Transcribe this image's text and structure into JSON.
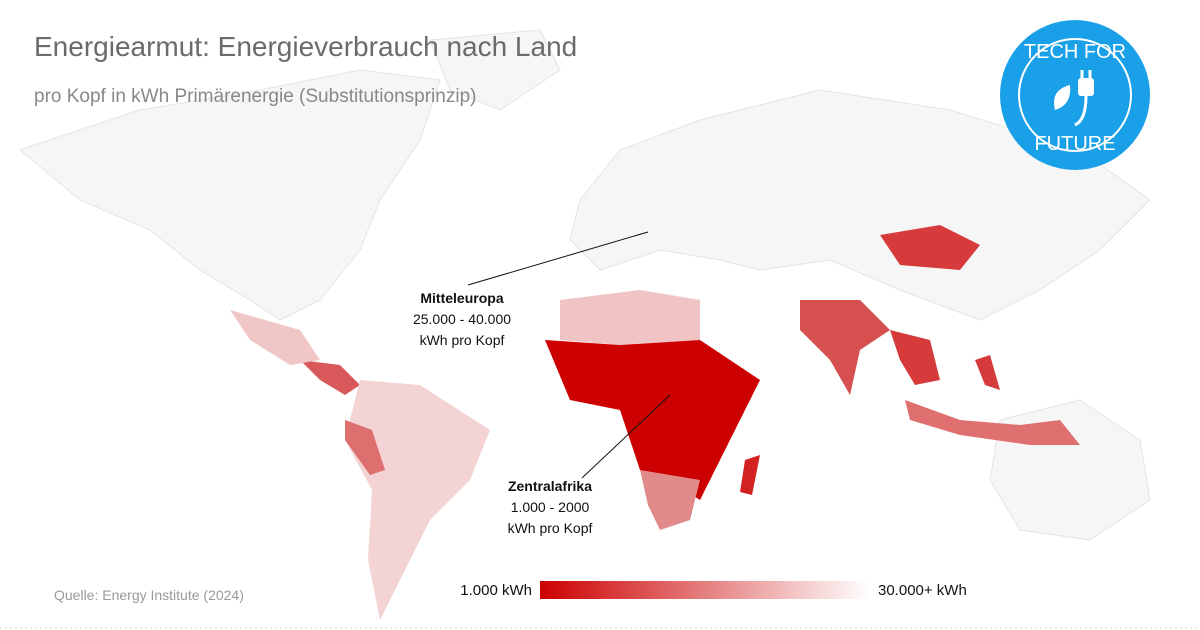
{
  "header": {
    "title": "Energiearmut: Energieverbrauch nach Land",
    "subtitle": "pro Kopf in kWh Primärenergie (Substitutionsprinzip)"
  },
  "annotations": [
    {
      "title": "Mitteleuropa",
      "range": "25.000 - 40.000",
      "unit": "kWh pro Kopf"
    },
    {
      "title": "Zentralafrika",
      "range": "1.000 - 2000",
      "unit": "kWh pro Kopf"
    }
  ],
  "legend": {
    "min_label": "1.000 kWh",
    "max_label": "30.000+ kWh"
  },
  "source": "Quelle: Energy Institute (2024)",
  "logo": {
    "top": "TECH FOR",
    "bottom": "FUTURE"
  }
}
